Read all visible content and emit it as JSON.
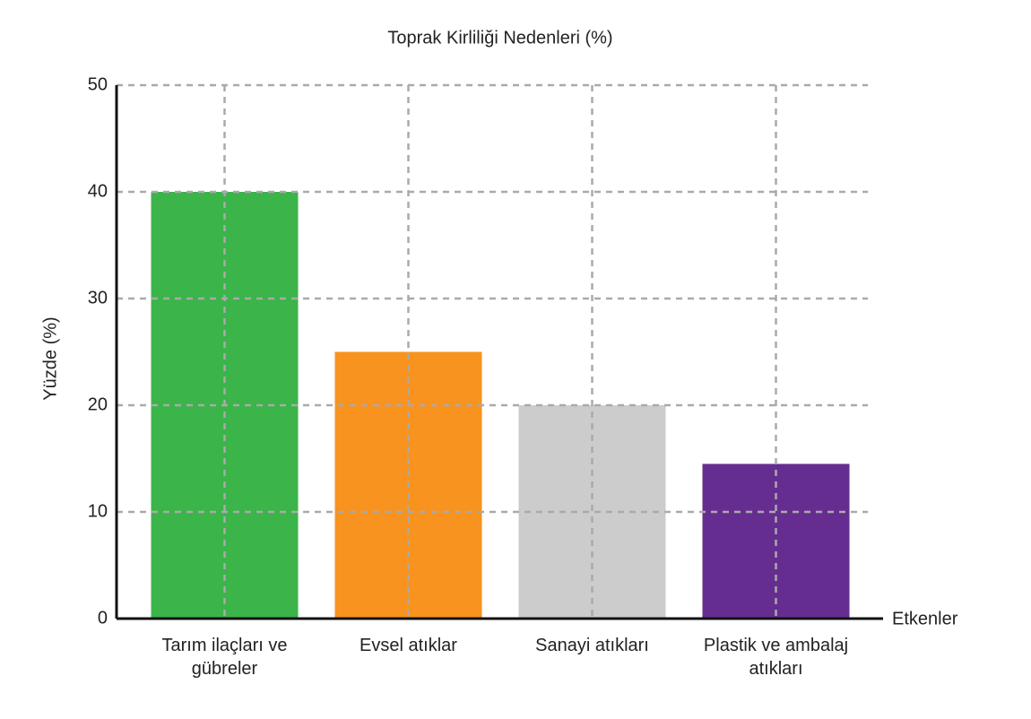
{
  "chart_data": {
    "type": "bar",
    "title": "Toprak Kirliliği Nedenleri (%)",
    "x_label": "Etkenler",
    "y_label": "Yüzde (%)",
    "categories": [
      "Tarım ilaçları ve gübreler",
      "Evsel atıklar",
      "Sanayi atıkları",
      "Plastik ve ambalaj atıkları"
    ],
    "values": [
      40,
      25,
      20,
      14.5
    ],
    "colors": [
      "#3bb44a",
      "#f7931e",
      "#cccccc",
      "#662d91"
    ],
    "ylim": [
      0,
      50
    ],
    "yticks": [
      0,
      10,
      20,
      30,
      40,
      50
    ],
    "grid": true
  }
}
